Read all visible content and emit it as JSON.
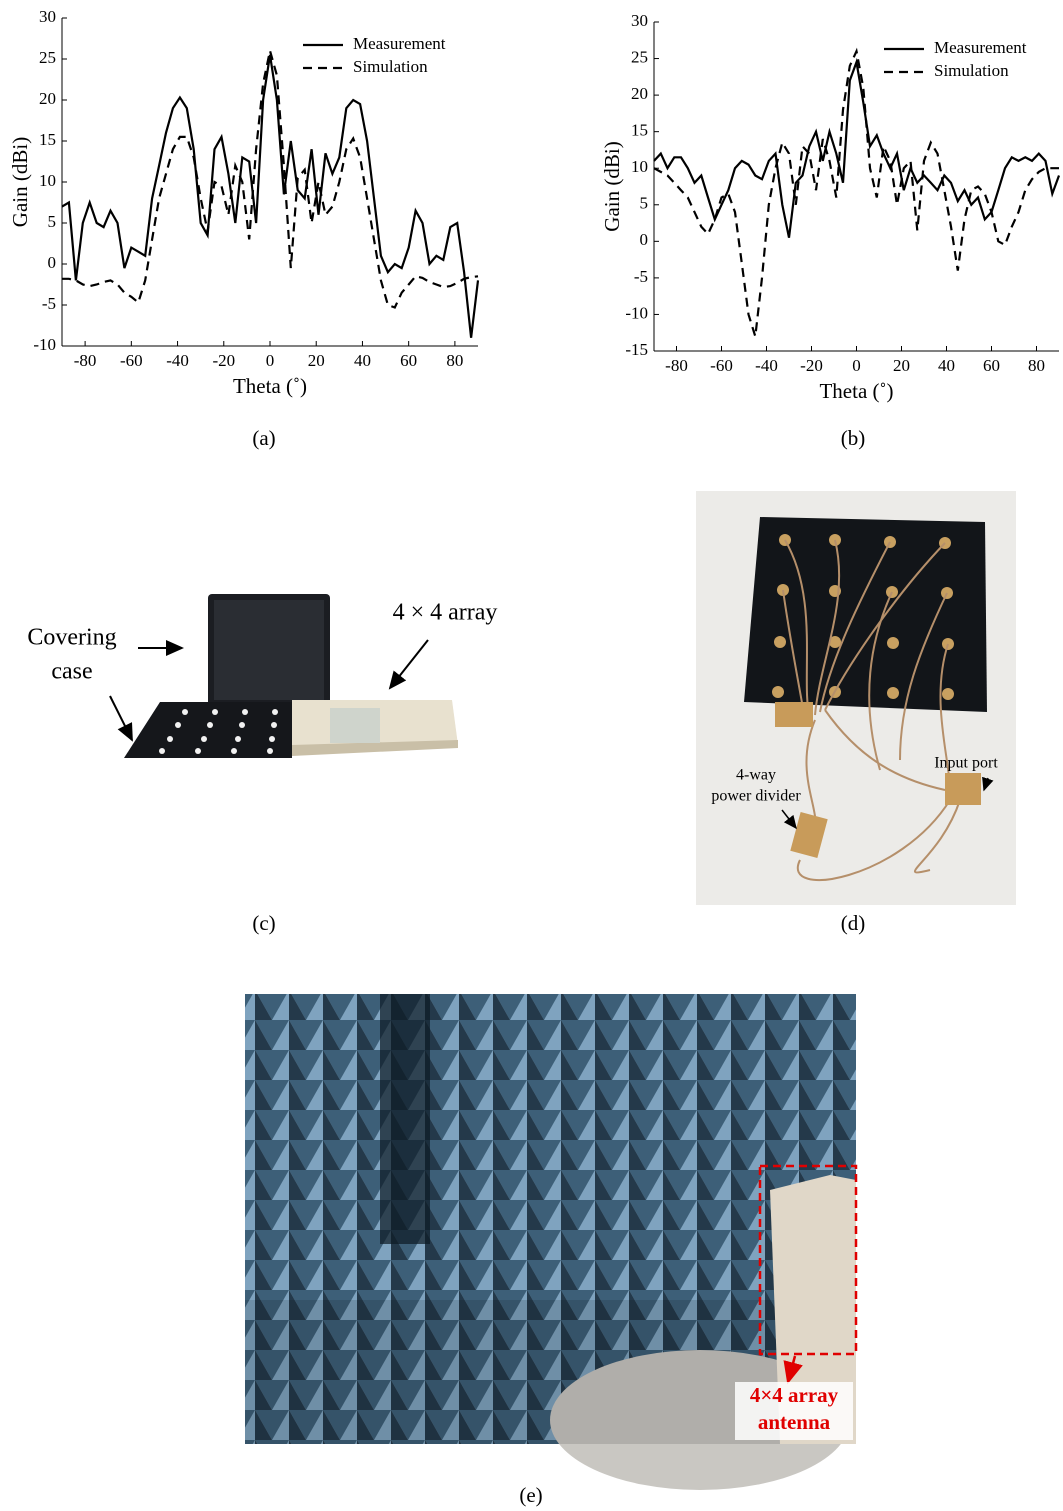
{
  "chart_data": [
    {
      "type": "line",
      "xlabel": "Theta (˚)",
      "ylabel": "Gain (dBi)",
      "xlim": [
        -90,
        90
      ],
      "xticks": [
        -80,
        -60,
        -40,
        -20,
        0,
        20,
        40,
        60,
        80
      ],
      "ylim": [
        -10,
        30
      ],
      "yticks": [
        -10,
        -5,
        0,
        5,
        10,
        15,
        20,
        25,
        30
      ],
      "legend": "upper right",
      "x": [
        -90,
        -87,
        -84,
        -81,
        -78,
        -75,
        -72,
        -69,
        -66,
        -63,
        -60,
        -57,
        -54,
        -51,
        -48,
        -45,
        -42,
        -39,
        -36,
        -33,
        -30,
        -27,
        -24,
        -21,
        -18,
        -15,
        -12,
        -9,
        -6,
        -3,
        0,
        3,
        6,
        9,
        12,
        15,
        18,
        21,
        24,
        27,
        30,
        33,
        36,
        39,
        42,
        45,
        48,
        51,
        54,
        57,
        60,
        63,
        66,
        69,
        72,
        75,
        78,
        81,
        84,
        87,
        90
      ],
      "series": [
        {
          "name": "Measurement",
          "color": "#000000",
          "style": "solid",
          "values": [
            7,
            7.5,
            -2,
            5,
            7.5,
            5,
            4.5,
            6.5,
            5,
            -0.5,
            2,
            1.5,
            1,
            8,
            12,
            16,
            19,
            20.3,
            19,
            14,
            5,
            3.5,
            14,
            15.5,
            11,
            5,
            13,
            12.5,
            5,
            20,
            25.5,
            20,
            8.5,
            15,
            9,
            8,
            14,
            6,
            13.5,
            11,
            13,
            19,
            20,
            19.5,
            15,
            8,
            1,
            -1,
            0,
            -0.5,
            2,
            6.5,
            5,
            0,
            1,
            0.5,
            4.5,
            5,
            -1,
            -9,
            -2
          ]
        },
        {
          "name": "Simulation",
          "color": "#000000",
          "style": "dashed",
          "values": [
            -1.8,
            -1.8,
            -2,
            -2.5,
            -2.7,
            -2.5,
            -2.2,
            -2,
            -2.5,
            -3.5,
            -4,
            -4.7,
            -2,
            3,
            8,
            11,
            14,
            15.5,
            15.5,
            13,
            8,
            4,
            10,
            9.5,
            6,
            12,
            10,
            3,
            14,
            22,
            26,
            23,
            12,
            -0.5,
            10.5,
            11.5,
            5,
            10,
            6,
            7,
            10,
            14,
            15.3,
            13,
            8,
            3,
            -2,
            -5,
            -5.3,
            -3.5,
            -2.5,
            -1.5,
            -1.7,
            -2.2,
            -2.5,
            -2.8,
            -2.7,
            -2.3,
            -1.8,
            -1.6,
            -1.5
          ]
        }
      ]
    },
    {
      "type": "line",
      "xlabel": "Theta (˚)",
      "ylabel": "Gain (dBi)",
      "xlim": [
        -90,
        90
      ],
      "xticks": [
        -80,
        -60,
        -40,
        -20,
        0,
        20,
        40,
        60,
        80
      ],
      "ylim": [
        -15,
        30
      ],
      "yticks": [
        -15,
        -10,
        -5,
        0,
        5,
        10,
        15,
        20,
        25,
        30
      ],
      "legend": "upper right",
      "x": [
        -90,
        -87,
        -84,
        -81,
        -78,
        -75,
        -72,
        -69,
        -66,
        -63,
        -60,
        -57,
        -54,
        -51,
        -48,
        -45,
        -42,
        -39,
        -36,
        -33,
        -30,
        -27,
        -24,
        -21,
        -18,
        -15,
        -12,
        -9,
        -6,
        -3,
        0,
        3,
        6,
        9,
        12,
        15,
        18,
        21,
        24,
        27,
        30,
        33,
        36,
        39,
        42,
        45,
        48,
        51,
        54,
        57,
        60,
        63,
        66,
        69,
        72,
        75,
        78,
        81,
        84,
        87,
        90
      ],
      "series": [
        {
          "name": "Measurement",
          "color": "#000000",
          "style": "solid",
          "values": [
            11,
            12,
            10,
            11.5,
            11.5,
            10,
            8,
            9,
            6,
            3,
            5,
            7,
            10,
            11,
            10.5,
            9,
            8.5,
            11,
            12,
            5,
            0.5,
            8,
            9,
            13,
            15,
            11,
            15,
            12,
            8,
            22,
            24.5,
            19,
            13,
            14.5,
            12,
            10,
            12,
            7,
            10,
            8,
            9,
            8,
            7,
            9,
            8,
            5.5,
            7,
            5,
            6,
            3,
            4,
            7,
            10,
            11.5,
            11,
            11.5,
            11,
            12,
            11,
            6.5,
            9
          ]
        },
        {
          "name": "Simulation",
          "color": "#000000",
          "style": "dashed",
          "values": [
            10,
            9.5,
            9,
            8,
            7,
            6,
            4,
            2,
            1,
            3,
            6,
            6.5,
            4,
            -3,
            -10,
            -13,
            -5,
            5,
            10,
            13.5,
            12,
            5,
            13,
            12,
            7,
            14,
            11,
            6,
            18,
            24,
            26,
            21,
            10,
            6,
            13,
            11,
            5,
            10,
            11,
            1.5,
            11,
            13.5,
            12,
            7,
            2,
            -4,
            3,
            7,
            7.5,
            6.5,
            4,
            0,
            -0.5,
            2,
            4,
            7,
            8.5,
            9.5,
            10,
            10,
            10
          ]
        }
      ]
    }
  ],
  "captions": [
    "(a)",
    "(b)",
    "(c)",
    "(d)",
    "(e)"
  ],
  "photo_c": {
    "covering_case": [
      "Covering",
      "case"
    ],
    "array": "4 × 4 array"
  },
  "photo_d": {
    "power_divider": [
      "4-way",
      "power divider"
    ],
    "input_port": "Input port"
  },
  "photo_e": {
    "label": [
      "4×4 array",
      "antenna"
    ]
  }
}
